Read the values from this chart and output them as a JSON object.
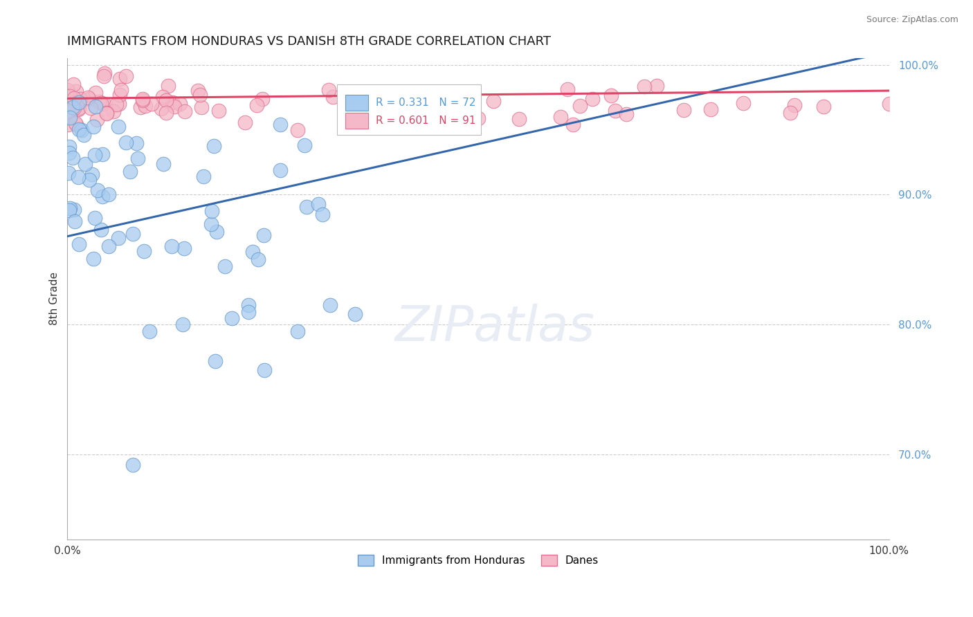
{
  "title": "IMMIGRANTS FROM HONDURAS VS DANISH 8TH GRADE CORRELATION CHART",
  "source": "Source: ZipAtlas.com",
  "ylabel": "8th Grade",
  "legend_labels": [
    "Immigrants from Honduras",
    "Danes"
  ],
  "r_blue": 0.331,
  "n_blue": 72,
  "r_pink": 0.601,
  "n_pink": 91,
  "blue_fill": "#A8CCF0",
  "blue_edge": "#6699CC",
  "pink_fill": "#F4B8C8",
  "pink_edge": "#E07090",
  "blue_line": "#3366AA",
  "pink_line": "#DD4466",
  "xlim": [
    0.0,
    1.0
  ],
  "ylim": [
    0.635,
    1.005
  ],
  "yticks": [
    0.7,
    0.8,
    0.9,
    1.0
  ],
  "ytick_labels": [
    "70.0%",
    "80.0%",
    "90.0%",
    "100.0%"
  ],
  "grid_color": "#CCCCCC",
  "background_color": "#FFFFFF",
  "blue_trend_x0": 0.0,
  "blue_trend_y0": 0.868,
  "blue_trend_x1": 1.0,
  "blue_trend_y1": 1.01,
  "pink_trend_x0": 0.0,
  "pink_trend_y0": 0.974,
  "pink_trend_x1": 1.0,
  "pink_trend_y1": 0.98,
  "watermark_text": "ZIPatlas",
  "watermark_color": "#E8ECF4"
}
